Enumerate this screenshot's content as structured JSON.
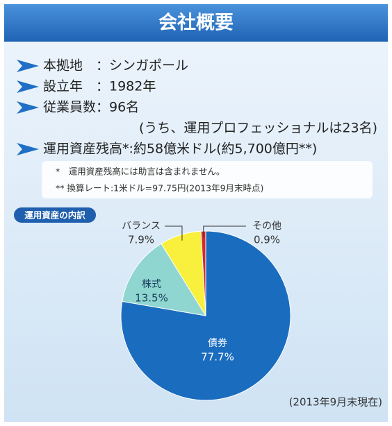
{
  "header": {
    "title": "会社概要"
  },
  "facts": [
    {
      "text": "本拠地　：シンガポール"
    },
    {
      "text": "設立年　：1982年"
    },
    {
      "text": "従業員数：96名",
      "sub": "(うち、運用プロフェッショナルは23名)"
    },
    {
      "text": "運用資産残高*:約58億米ドル(約5,700億円**)"
    }
  ],
  "notes": [
    "*　運用資産残高には助言は含まれません。",
    "**  換算レート:1米ドル=97.75円(2013年9月末時点)"
  ],
  "chart_data": {
    "type": "pie",
    "title": "運用資産の内訳",
    "categories": [
      "債券",
      "株式",
      "バランス",
      "その他"
    ],
    "values": [
      77.7,
      13.5,
      7.9,
      0.9
    ],
    "value_labels": [
      "77.7%",
      "13.5%",
      "7.9%",
      "0.9%"
    ],
    "colors": [
      "#1a6cbf",
      "#8fd6d0",
      "#f8f03c",
      "#d42a2e"
    ],
    "footnote": "(2013年9月末現在)"
  }
}
